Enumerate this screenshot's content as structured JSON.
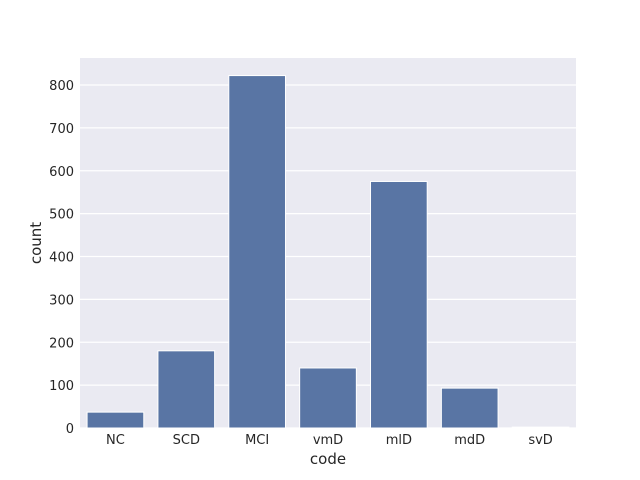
{
  "chart_data": {
    "type": "bar",
    "categories": [
      "NC",
      "SCD",
      "MCI",
      "vmD",
      "mlD",
      "mdD",
      "svD"
    ],
    "values": [
      37,
      180,
      822,
      140,
      575,
      93,
      2
    ],
    "xlabel": "code",
    "ylabel": "count",
    "ylim": [
      0,
      863
    ],
    "yticks": [
      0,
      100,
      200,
      300,
      400,
      500,
      600,
      700,
      800
    ],
    "grid": true,
    "bar_color": "#5975a4",
    "background_color": "#eaeaf2",
    "grid_color": "#ffffff"
  }
}
